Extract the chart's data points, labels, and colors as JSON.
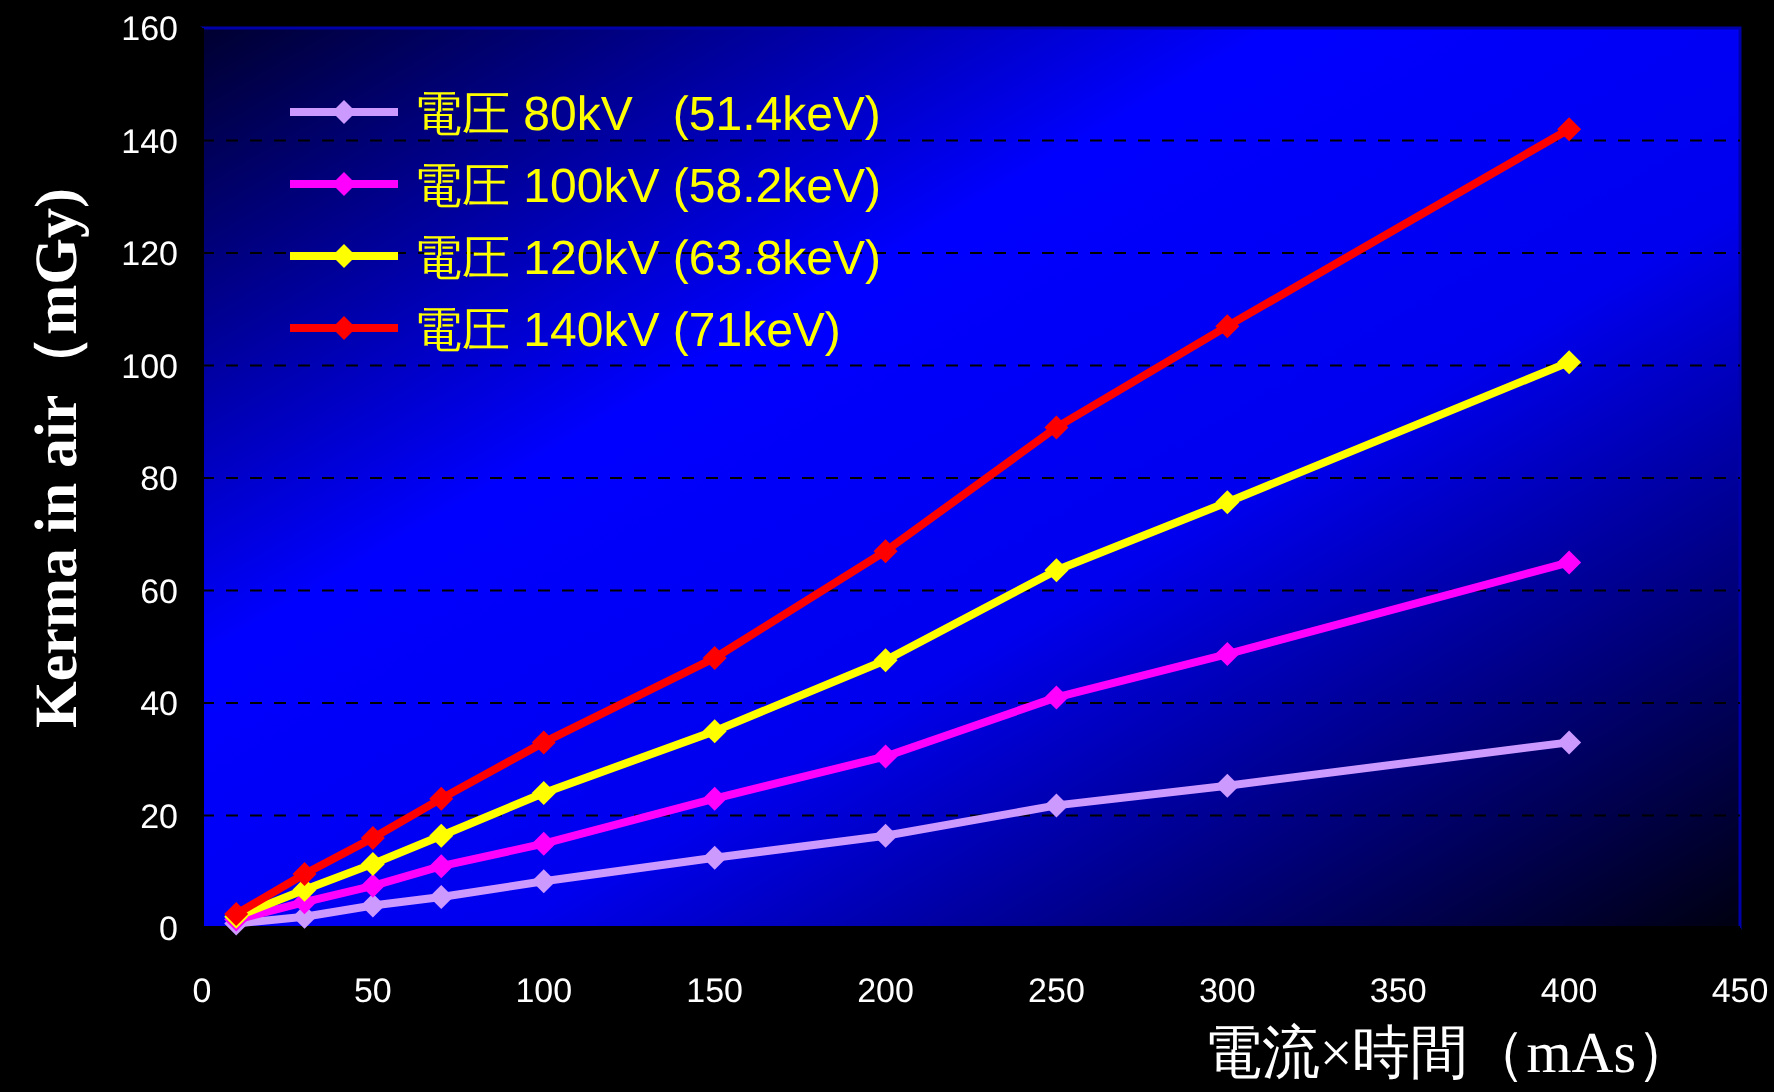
{
  "chart_data": {
    "type": "line",
    "xlabel": "電流×時間（mAs）",
    "ylabel": "Kerma in air（mGy)",
    "x": [
      10,
      30,
      50,
      70,
      100,
      150,
      200,
      250,
      300,
      400
    ],
    "series": [
      {
        "name": "電圧 80kV   (51.4keV)",
        "color": "#cc99ff",
        "values": [
          0.8,
          2,
          4,
          5.5,
          8.3,
          12.5,
          16.4,
          21.8,
          25.3,
          33
        ]
      },
      {
        "name": "電圧 100kV (58.2keV)",
        "color": "#ff00ff",
        "values": [
          1.5,
          4.6,
          7.5,
          11,
          15,
          23,
          30.5,
          41,
          48.7,
          65
        ]
      },
      {
        "name": "電圧 120kV (63.8keV)",
        "color": "#ffff00",
        "values": [
          2,
          6.8,
          11.4,
          16.4,
          24,
          35,
          47.6,
          63.6,
          75.7,
          100.6
        ]
      },
      {
        "name": "電圧 140kV (71keV)",
        "color": "#ff0000",
        "values": [
          2.5,
          9.6,
          16,
          23,
          33,
          48,
          67,
          89,
          107,
          142
        ]
      }
    ],
    "xlim": [
      0,
      450
    ],
    "xticks": [
      0,
      50,
      100,
      150,
      200,
      250,
      300,
      350,
      400,
      450
    ],
    "ylim": [
      0,
      160
    ],
    "yticks": [
      0,
      20,
      40,
      60,
      80,
      100,
      120,
      140,
      160
    ],
    "grid": "y",
    "legend": "top left",
    "marker": "diamond",
    "line_style": "solid"
  }
}
